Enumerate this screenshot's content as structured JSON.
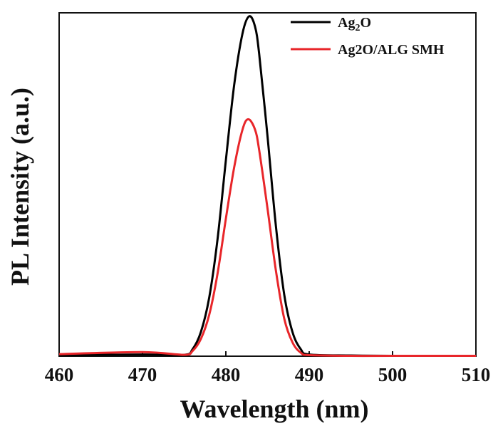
{
  "chart_data": {
    "type": "line",
    "xlabel": "Wavelength (nm)",
    "ylabel": "PL Intensity (a.u.)",
    "xlim": [
      460,
      510
    ],
    "ylim": [
      0,
      1.0
    ],
    "xticks": [
      "460",
      "470",
      "480",
      "490",
      "500",
      "510"
    ],
    "yticks_shown": false,
    "legend_position": "top-right",
    "series": [
      {
        "name": "Ag2O",
        "name_main": "Ag",
        "name_sub": "2",
        "name_tail": "O",
        "color": "#000000",
        "x": [
          460,
          470,
          475,
          476,
          477,
          478,
          479,
          480,
          481,
          482,
          482.8,
          483.5,
          484,
          485,
          486,
          487,
          488,
          489,
          490,
          495,
          500,
          510
        ],
        "y": [
          0.003,
          0.005,
          0.004,
          0.02,
          0.07,
          0.17,
          0.34,
          0.57,
          0.79,
          0.94,
          0.99,
          0.96,
          0.88,
          0.64,
          0.38,
          0.18,
          0.07,
          0.02,
          0.005,
          0.002,
          0.001,
          0.001
        ]
      },
      {
        "name": "Ag2O/ALG SMH",
        "color": "#e8262a",
        "x": [
          460,
          470,
          475,
          476,
          477,
          478,
          479,
          480,
          481,
          482,
          482.7,
          483.5,
          484,
          485,
          486,
          487,
          488,
          489,
          490,
          495,
          500,
          510
        ],
        "y": [
          0.006,
          0.012,
          0.004,
          0.015,
          0.05,
          0.12,
          0.24,
          0.4,
          0.55,
          0.66,
          0.69,
          0.66,
          0.6,
          0.43,
          0.25,
          0.11,
          0.04,
          0.01,
          0.003,
          0.001,
          0.001,
          0.001
        ]
      }
    ]
  }
}
